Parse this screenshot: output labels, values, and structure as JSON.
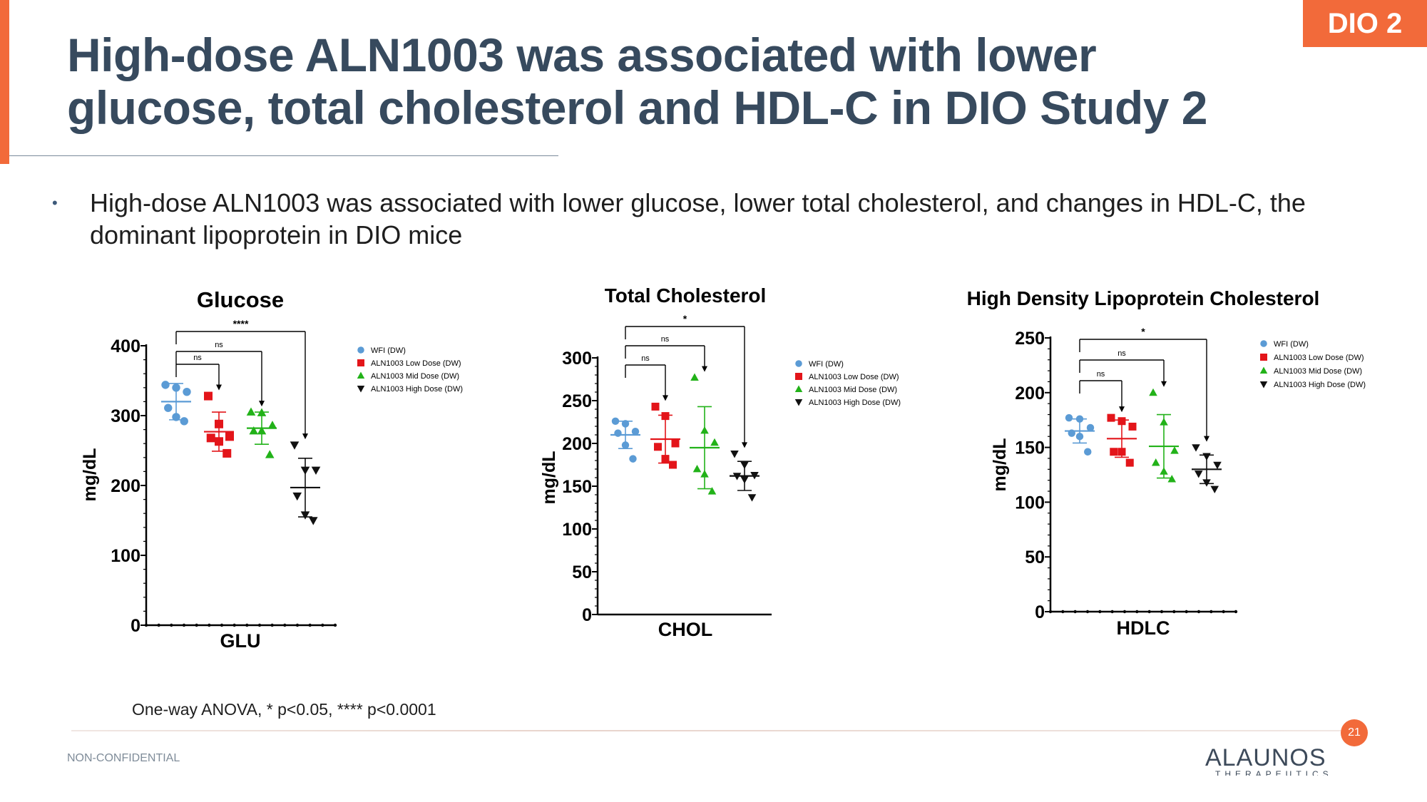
{
  "slide": {
    "tag": "DIO 2",
    "title": "High-dose ALN1003 was associated with lower glucose, total cholesterol and HDL-C in DIO Study 2",
    "bullet": "High-dose ALN1003 was associated with lower glucose, lower total cholesterol, and changes in HDL-C, the dominant lipoprotein in DIO mice",
    "footnote": "One-way ANOVA, * p<0.05, **** p<0.0001",
    "page_number": "21",
    "confidentiality": "NON-CONFIDENTIAL",
    "logo_main": "ALAUNOS",
    "logo_sub": "THERAPEUTICS",
    "accent_color": "#f26a3a",
    "title_color": "#374a5e"
  },
  "groups": [
    {
      "name": "WFI (DW)",
      "color": "#5b9bd5",
      "marker": "circle"
    },
    {
      "name": "ALN1003 Low Dose (DW)",
      "color": "#e3151a",
      "marker": "square"
    },
    {
      "name": "ALN1003 Mid Dose (DW)",
      "color": "#22b219",
      "marker": "triangle-up"
    },
    {
      "name": "ALN1003 High Dose (DW)",
      "color": "#111111",
      "marker": "triangle-down"
    }
  ],
  "chart_data": [
    {
      "type": "scatter",
      "title": "Glucose",
      "xlabel": "GLU",
      "ylabel": "mg/dL",
      "ylim": [
        0,
        400
      ],
      "yticks": [
        0,
        100,
        200,
        300,
        400
      ],
      "legend_position": "right",
      "series": [
        {
          "name": "WFI (DW)",
          "values": [
            344,
            340,
            334,
            311,
            298,
            292
          ],
          "mean": 320,
          "sd": 26
        },
        {
          "name": "ALN1003 Low Dose (DW)",
          "values": [
            328,
            288,
            270,
            268,
            263,
            246
          ],
          "mean": 277,
          "sd": 28
        },
        {
          "name": "ALN1003 Mid Dose (DW)",
          "values": [
            305,
            304,
            286,
            278,
            278,
            244
          ],
          "mean": 282,
          "sd": 23
        },
        {
          "name": "ALN1003 High Dose (DW)",
          "values": [
            258,
            222,
            222,
            185,
            158,
            150
          ],
          "mean": 197,
          "sd": 42
        }
      ],
      "comparisons": [
        {
          "label": "ns",
          "between": [
            "WFI (DW)",
            "ALN1003 Low Dose (DW)"
          ]
        },
        {
          "label": "ns",
          "between": [
            "WFI (DW)",
            "ALN1003 Mid Dose (DW)"
          ]
        },
        {
          "label": "****",
          "between": [
            "WFI (DW)",
            "ALN1003 High Dose (DW)"
          ]
        }
      ]
    },
    {
      "type": "scatter",
      "title": "Total Cholesterol",
      "xlabel": "CHOL",
      "ylabel": "mg/dL",
      "ylim": [
        0,
        300
      ],
      "yticks": [
        0,
        50,
        100,
        150,
        200,
        250,
        300
      ],
      "legend_position": "right",
      "series": [
        {
          "name": "WFI (DW)",
          "values": [
            226,
            223,
            214,
            212,
            198,
            182
          ],
          "mean": 210,
          "sd": 16
        },
        {
          "name": "ALN1003 Low Dose (DW)",
          "values": [
            243,
            232,
            200,
            196,
            182,
            175
          ],
          "mean": 205,
          "sd": 28
        },
        {
          "name": "ALN1003 Mid Dose (DW)",
          "values": [
            277,
            215,
            201,
            170,
            164,
            144
          ],
          "mean": 195,
          "sd": 48
        },
        {
          "name": "ALN1003 High Dose (DW)",
          "values": [
            188,
            175,
            163,
            162,
            158,
            137
          ],
          "mean": 162,
          "sd": 17
        }
      ],
      "comparisons": [
        {
          "label": "ns",
          "between": [
            "WFI (DW)",
            "ALN1003 Low Dose (DW)"
          ]
        },
        {
          "label": "ns",
          "between": [
            "WFI (DW)",
            "ALN1003 Mid Dose (DW)"
          ]
        },
        {
          "label": "*",
          "between": [
            "WFI (DW)",
            "ALN1003 High Dose (DW)"
          ]
        }
      ]
    },
    {
      "type": "scatter",
      "title": "High Density Lipoprotein Cholesterol",
      "xlabel": "HDLC",
      "ylabel": "mg/dL",
      "ylim": [
        0,
        250
      ],
      "yticks": [
        0,
        50,
        100,
        150,
        200,
        250
      ],
      "legend_position": "right",
      "series": [
        {
          "name": "WFI (DW)",
          "values": [
            177,
            176,
            168,
            163,
            160,
            146
          ],
          "mean": 165,
          "sd": 11
        },
        {
          "name": "ALN1003 Low Dose (DW)",
          "values": [
            177,
            174,
            169,
            146,
            146,
            136
          ],
          "mean": 158,
          "sd": 17
        },
        {
          "name": "ALN1003 Mid Dose (DW)",
          "values": [
            200,
            173,
            147,
            136,
            128,
            121
          ],
          "mean": 151,
          "sd": 29
        },
        {
          "name": "ALN1003 High Dose (DW)",
          "values": [
            150,
            142,
            134,
            126,
            118,
            112
          ],
          "mean": 130,
          "sd": 13
        }
      ],
      "comparisons": [
        {
          "label": "ns",
          "between": [
            "WFI (DW)",
            "ALN1003 Low Dose (DW)"
          ]
        },
        {
          "label": "ns",
          "between": [
            "WFI (DW)",
            "ALN1003 Mid Dose (DW)"
          ]
        },
        {
          "label": "*",
          "between": [
            "WFI (DW)",
            "ALN1003 High Dose (DW)"
          ]
        }
      ]
    }
  ]
}
